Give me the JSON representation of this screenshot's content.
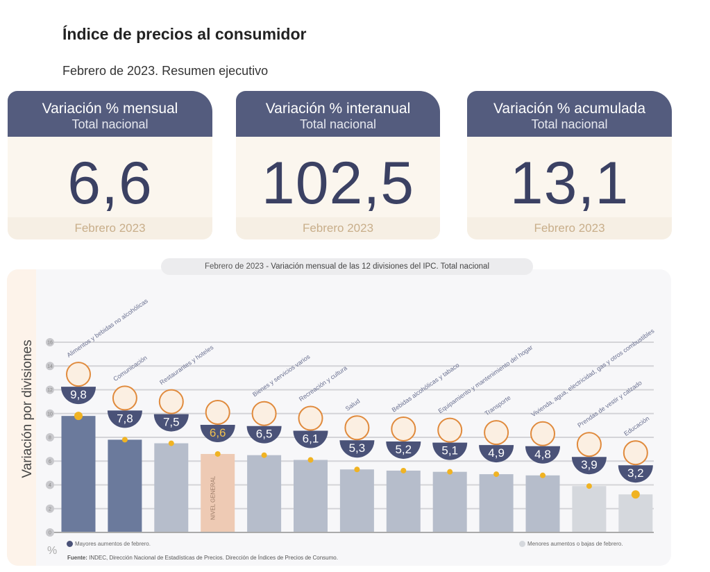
{
  "title": "Índice de precios al consumidor",
  "subtitle": "Febrero de 2023. Resumen ejecutivo",
  "cards": [
    {
      "title": "Variación % mensual",
      "subtitle": "Total nacional",
      "value": "6,6",
      "period": "Febrero 2023"
    },
    {
      "title": "Variación % interanual",
      "subtitle": "Total nacional",
      "value": "102,5",
      "period": "Febrero 2023"
    },
    {
      "title": "Variación % acumulada",
      "subtitle": "Total nacional",
      "value": "13,1",
      "period": "Febrero 2023"
    }
  ],
  "chart_data": {
    "type": "bar",
    "title_prefix": "Febrero de 2023",
    "title": " - Variación mensual de las 12 divisiones del IPC. Total nacional",
    "ylabel": "Variación por divisiones",
    "yunit": "%",
    "ylim": [
      0,
      16
    ],
    "yticks": [
      0,
      2,
      4,
      6,
      8,
      10,
      12,
      14,
      16
    ],
    "grid": true,
    "categories": [
      "Alimentos y bebidas no alcohólicas",
      "Comunicación",
      "Restaurantes y hoteles",
      "NIVEL GENERAL",
      "Bienes y servicios varios",
      "Recreación y cultura",
      "Salud",
      "Bebidas alcohólicas y tabaco",
      "Equipamiento y mantenimiento del hogar",
      "Transporte",
      "Vivienda, agua, electricidad, gas y otros combustibles",
      "Prendas de vestir y calzado",
      "Educación"
    ],
    "values": [
      9.8,
      7.8,
      7.5,
      6.6,
      6.5,
      6.1,
      5.3,
      5.2,
      5.1,
      4.9,
      4.8,
      3.9,
      3.2
    ],
    "value_labels": [
      "9,8",
      "7,8",
      "7,5",
      "6,6",
      "6,5",
      "6,1",
      "5,3",
      "5,2",
      "5,1",
      "4,9",
      "4,8",
      "3,9",
      "3,2"
    ],
    "groups": [
      "high",
      "high",
      "mid",
      "general",
      "mid",
      "mid",
      "mid",
      "mid",
      "mid",
      "mid",
      "mid",
      "low",
      "low"
    ],
    "colors": {
      "high": "#6b7a9c",
      "mid": "#b6bdcb",
      "general": "#eecab4",
      "low": "#d5d8dd",
      "bowl": "#4a5278",
      "marker": "#f0b323",
      "icon": "#e08a3c"
    },
    "legend": {
      "high": "Mayores aumentos de febrero.",
      "low": "Menores aumentos o bajas de febrero."
    },
    "source_label": "Fuente:",
    "source": " INDEC, Dirección Nacional de Estadísticas de Precios. Dirección de Índices de Precios de Consumo."
  }
}
